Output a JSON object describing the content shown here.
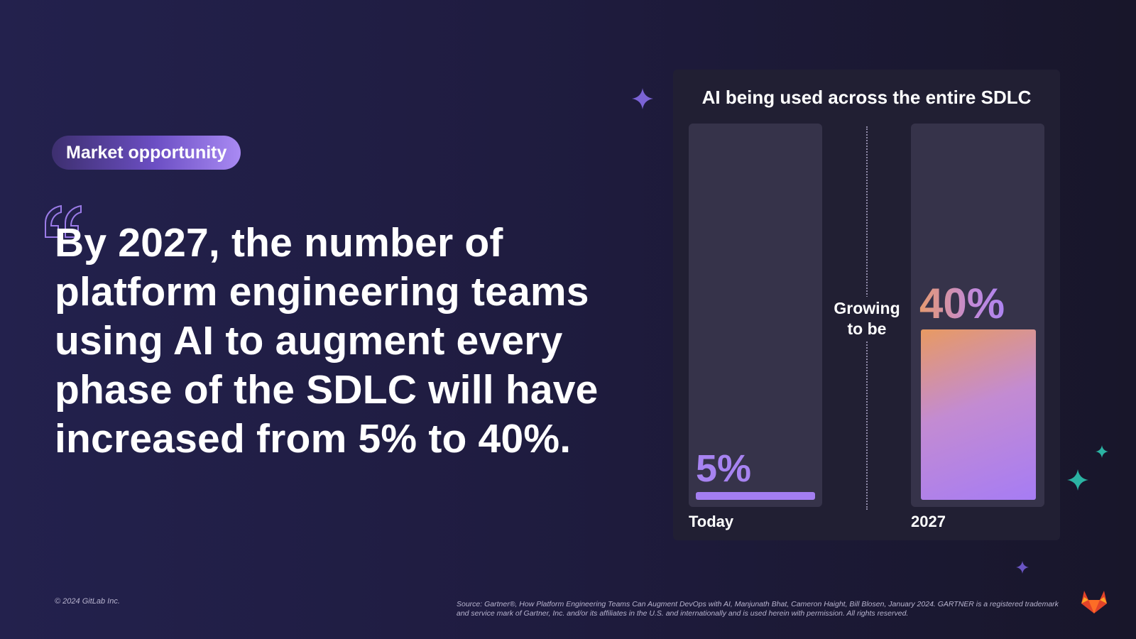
{
  "badge": {
    "label": "Market opportunity"
  },
  "headline": "By 2027, the number of\nplatform engineering teams\nusing AI to augment every\nphase of the SDLC will have\nincreased from 5% to 40%.",
  "colors": {
    "background": "#221f45",
    "panel": "#211f33",
    "track": "#36334a",
    "today_bar": "#a37ef1",
    "gradient_start": "#e89a62",
    "gradient_end": "#a67cf4",
    "sparkle_purple": "#7b63d6",
    "sparkle_teal": "#2bb3a3"
  },
  "chart_data": {
    "type": "bar",
    "title": "AI being used across the entire SDLC",
    "categories": [
      "Today",
      "2027"
    ],
    "values": [
      5,
      40
    ],
    "value_labels": [
      "5%",
      "40%"
    ],
    "ylim": [
      0,
      100
    ],
    "annotation": [
      "Growing",
      "to be"
    ],
    "xlabel": "",
    "ylabel": ""
  },
  "footer": {
    "copyright": "© 2024 GitLab Inc.",
    "source": "Source: Gartner®, How Platform Engineering Teams Can Augment DevOps with AI, Manjunath Bhat, Cameron Haight, Bill Blosen, January 2024. GARTNER is a registered trademark and service mark of Gartner, Inc. and/or its affiliates in the U.S. and internationally and is used herein with permission. All rights reserved."
  },
  "icons": {
    "quote": "open-quote-icon",
    "sparkles": "sparkle-icon",
    "logo": "gitlab-logo-icon"
  }
}
